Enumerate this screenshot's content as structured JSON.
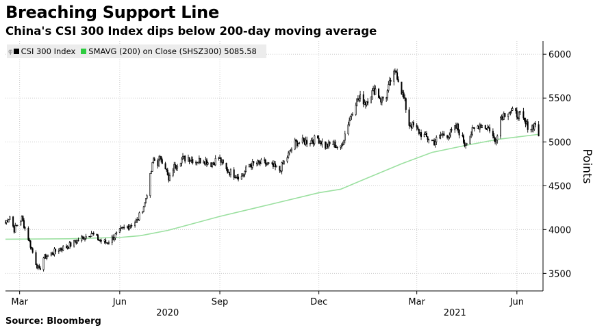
{
  "title": "Breaching Support Line",
  "subtitle": "China's CSI 300 Index dips below 200-day moving average",
  "legend": {
    "pin": "φ",
    "series1": "CSI 300 Index",
    "series2": "SMAVG (200)  on Close (SHSZ300) 5085.58"
  },
  "source": "Source: Bloomberg",
  "colors": {
    "index": "#000000",
    "smavg": "#9be0a0",
    "legend_smavg": "#2ecc40",
    "grid": "#cccccc"
  },
  "chart_data": {
    "type": "line",
    "title": "Breaching Support Line",
    "subtitle": "China's CSI 300 Index dips below 200-day moving average",
    "xlabel": "",
    "ylabel": "Points",
    "y_axis_side": "right",
    "ylim": [
      3300,
      6150
    ],
    "xlim": [
      "2020-02-17",
      "2021-06-25"
    ],
    "y_ticks": [
      3500,
      4000,
      4500,
      5000,
      5500,
      6000
    ],
    "x_ticks": [
      {
        "date": "2020-03-01",
        "label": "Mar"
      },
      {
        "date": "2020-06-01",
        "label": "Jun"
      },
      {
        "date": "2020-09-01",
        "label": "Sep"
      },
      {
        "date": "2020-12-01",
        "label": "Dec"
      },
      {
        "date": "2021-03-01",
        "label": "Mar"
      },
      {
        "date": "2021-06-01",
        "label": "Jun"
      }
    ],
    "year_labels": [
      {
        "date": "2020-07-15",
        "label": "2020"
      },
      {
        "date": "2021-04-05",
        "label": "2021"
      }
    ],
    "grid": true,
    "legend_position": "top-left",
    "series": [
      {
        "name": "CSI 300 Index",
        "style": "candlestick",
        "x": [
          "2020-02-17",
          "2020-02-21",
          "2020-02-25",
          "2020-03-03",
          "2020-03-09",
          "2020-03-16",
          "2020-03-19",
          "2020-03-23",
          "2020-03-30",
          "2020-04-06",
          "2020-04-13",
          "2020-04-20",
          "2020-04-27",
          "2020-05-06",
          "2020-05-13",
          "2020-05-20",
          "2020-05-27",
          "2020-06-03",
          "2020-06-10",
          "2020-06-17",
          "2020-06-24",
          "2020-06-29",
          "2020-07-02",
          "2020-07-06",
          "2020-07-09",
          "2020-07-13",
          "2020-07-16",
          "2020-07-20",
          "2020-07-27",
          "2020-08-03",
          "2020-08-10",
          "2020-08-17",
          "2020-08-24",
          "2020-08-31",
          "2020-09-07",
          "2020-09-14",
          "2020-09-21",
          "2020-09-28",
          "2020-10-12",
          "2020-10-19",
          "2020-10-26",
          "2020-11-02",
          "2020-11-09",
          "2020-11-16",
          "2020-11-23",
          "2020-11-30",
          "2020-12-07",
          "2020-12-14",
          "2020-12-21",
          "2020-12-28",
          "2021-01-04",
          "2021-01-08",
          "2021-01-13",
          "2021-01-18",
          "2021-01-22",
          "2021-01-27",
          "2021-02-01",
          "2021-02-05",
          "2021-02-10",
          "2021-02-18",
          "2021-02-22",
          "2021-02-26",
          "2021-03-04",
          "2021-03-10",
          "2021-03-17",
          "2021-03-24",
          "2021-03-31",
          "2021-04-07",
          "2021-04-14",
          "2021-04-21",
          "2021-04-28",
          "2021-05-07",
          "2021-05-12",
          "2021-05-17",
          "2021-05-24",
          "2021-05-31",
          "2021-06-04",
          "2021-06-09",
          "2021-06-14",
          "2021-06-18",
          "2021-06-21"
        ],
        "values": [
          4080,
          4150,
          4000,
          4130,
          3900,
          3620,
          3530,
          3680,
          3720,
          3780,
          3800,
          3850,
          3900,
          3960,
          3880,
          3850,
          3920,
          4000,
          4050,
          4100,
          4300,
          4600,
          4800,
          4760,
          4820,
          4720,
          4550,
          4700,
          4800,
          4820,
          4780,
          4800,
          4750,
          4820,
          4680,
          4630,
          4600,
          4740,
          4760,
          4720,
          4680,
          4830,
          4990,
          5000,
          5010,
          5040,
          4950,
          4980,
          4920,
          5220,
          5460,
          5500,
          5450,
          5550,
          5600,
          5480,
          5530,
          5700,
          5800,
          5450,
          5200,
          5180,
          5100,
          5050,
          5000,
          5080,
          5090,
          5170,
          4980,
          5120,
          5200,
          5150,
          5000,
          5280,
          5360,
          5320,
          5300,
          5200,
          5160,
          5210,
          5085
        ]
      },
      {
        "name": "SMAVG (200) on Close (SHSZ300)",
        "style": "line",
        "x": [
          "2020-02-17",
          "2020-04-15",
          "2020-06-01",
          "2020-06-20",
          "2020-07-15",
          "2020-09-01",
          "2020-10-15",
          "2020-12-01",
          "2020-12-21",
          "2021-01-15",
          "2021-02-15",
          "2021-03-15",
          "2021-04-15",
          "2021-05-15",
          "2021-06-21"
        ],
        "values": [
          3890,
          3895,
          3910,
          3930,
          3990,
          4150,
          4280,
          4420,
          4460,
          4590,
          4750,
          4880,
          4960,
          5030,
          5086
        ]
      }
    ]
  }
}
